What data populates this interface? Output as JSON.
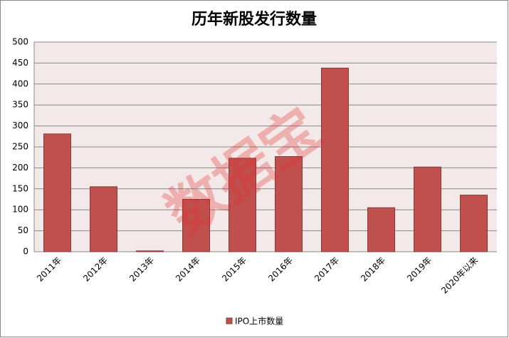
{
  "chart_data": {
    "type": "bar",
    "title": "历年新股发行数量",
    "categories": [
      "2011年",
      "2012年",
      "2013年",
      "2014年",
      "2015年",
      "2016年",
      "2017年",
      "2018年",
      "2019年",
      "2020年以来"
    ],
    "series": [
      {
        "name": "IPO上市数量",
        "color": "#c0504d",
        "values": [
          281,
          155,
          2,
          125,
          223,
          227,
          438,
          105,
          202,
          135
        ]
      }
    ],
    "ylim": [
      0,
      500
    ],
    "yticks": [
      0,
      50,
      100,
      150,
      200,
      250,
      300,
      350,
      400,
      450,
      500
    ],
    "grid": true,
    "legend": "bottom",
    "watermark": "数据宝"
  }
}
